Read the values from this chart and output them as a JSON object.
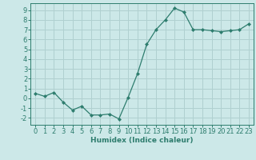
{
  "x": [
    0,
    1,
    2,
    3,
    4,
    5,
    6,
    7,
    8,
    9,
    10,
    11,
    12,
    13,
    14,
    15,
    16,
    17,
    18,
    19,
    20,
    21,
    22,
    23
  ],
  "y": [
    0.5,
    0.2,
    0.6,
    -0.4,
    -1.2,
    -0.8,
    -1.7,
    -1.7,
    -1.6,
    -2.1,
    0.1,
    2.5,
    5.5,
    7.0,
    8.0,
    9.2,
    8.8,
    7.0,
    7.0,
    6.9,
    6.8,
    6.9,
    7.0,
    7.6
  ],
  "line_color": "#2e7d6e",
  "marker": "D",
  "marker_size": 2.0,
  "bg_color": "#cce8e8",
  "grid_color": "#b0d0d0",
  "xlabel": "Humidex (Indice chaleur)",
  "xlim": [
    -0.5,
    23.5
  ],
  "ylim": [
    -2.7,
    9.7
  ],
  "yticks": [
    -2,
    -1,
    0,
    1,
    2,
    3,
    4,
    5,
    6,
    7,
    8,
    9
  ],
  "xticks": [
    0,
    1,
    2,
    3,
    4,
    5,
    6,
    7,
    8,
    9,
    10,
    11,
    12,
    13,
    14,
    15,
    16,
    17,
    18,
    19,
    20,
    21,
    22,
    23
  ],
  "label_fontsize": 6.5,
  "tick_fontsize": 6.0
}
